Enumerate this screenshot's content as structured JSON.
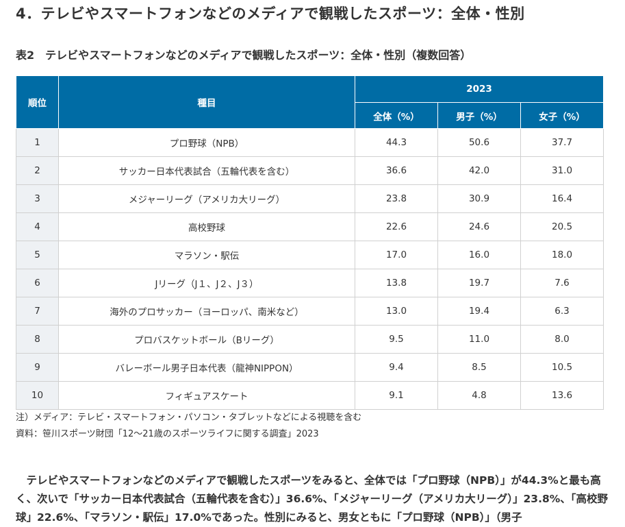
{
  "section_title": "4．テレビやスマートフォンなどのメディアで観戦したスポーツ：全体・性別",
  "table_caption": "表2　テレビやスマートフォンなどのメディアで観戦したスポーツ：全体・性別（複数回答）",
  "table": {
    "header": {
      "rank": "順位",
      "item": "種目",
      "year": "2023",
      "all": "全体（%）",
      "male": "男子（%）",
      "female": "女子（%）"
    },
    "rows": [
      {
        "rank": "1",
        "item": "プロ野球（NPB）",
        "all": "44.3",
        "male": "50.6",
        "female": "37.7"
      },
      {
        "rank": "2",
        "item": "サッカー日本代表試合（五輪代表を含む）",
        "all": "36.6",
        "male": "42.0",
        "female": "31.0"
      },
      {
        "rank": "3",
        "item": "メジャーリーグ（アメリカ大リーグ）",
        "all": "23.8",
        "male": "30.9",
        "female": "16.4"
      },
      {
        "rank": "4",
        "item": "高校野球",
        "all": "22.6",
        "male": "24.6",
        "female": "20.5"
      },
      {
        "rank": "5",
        "item": "マラソン・駅伝",
        "all": "17.0",
        "male": "16.0",
        "female": "18.0"
      },
      {
        "rank": "6",
        "item": "Jリーグ（J１、J２、J３）",
        "all": "13.8",
        "male": "19.7",
        "female": "7.6"
      },
      {
        "rank": "7",
        "item": "海外のプロサッカー（ヨーロッパ、南米など）",
        "all": "13.0",
        "male": "19.4",
        "female": "6.3"
      },
      {
        "rank": "8",
        "item": "プロバスケットボール（Bリーグ）",
        "all": "9.5",
        "male": "11.0",
        "female": "8.0"
      },
      {
        "rank": "9",
        "item": "バレーボール男子日本代表（龍神NIPPON）",
        "all": "9.4",
        "male": "8.5",
        "female": "10.5"
      },
      {
        "rank": "10",
        "item": "フィギュアスケート",
        "all": "9.1",
        "male": "4.8",
        "female": "13.6"
      }
    ]
  },
  "notes": {
    "note1": "注）メディア：テレビ・スマートフォン・パソコン・タブレットなどによる視聴を含む",
    "note2": "資料：笹川スポーツ財団「12～21歳のスポーツライフに関する調査」2023"
  },
  "body_text": "テレビやスマートフォンなどのメディアで観戦したスポーツをみると、全体では「プロ野球（NPB）」が44.3%と最も高く、次いで「サッカー日本代表試合（五輪代表を含む）」36.6%、「メジャーリーグ（アメリカ大リーグ）」23.8%、「高校野球」22.6%、「マラソン・駅伝」17.0%であった。性別にみると、男女ともに「プロ野球（NPB）」（男子"
}
